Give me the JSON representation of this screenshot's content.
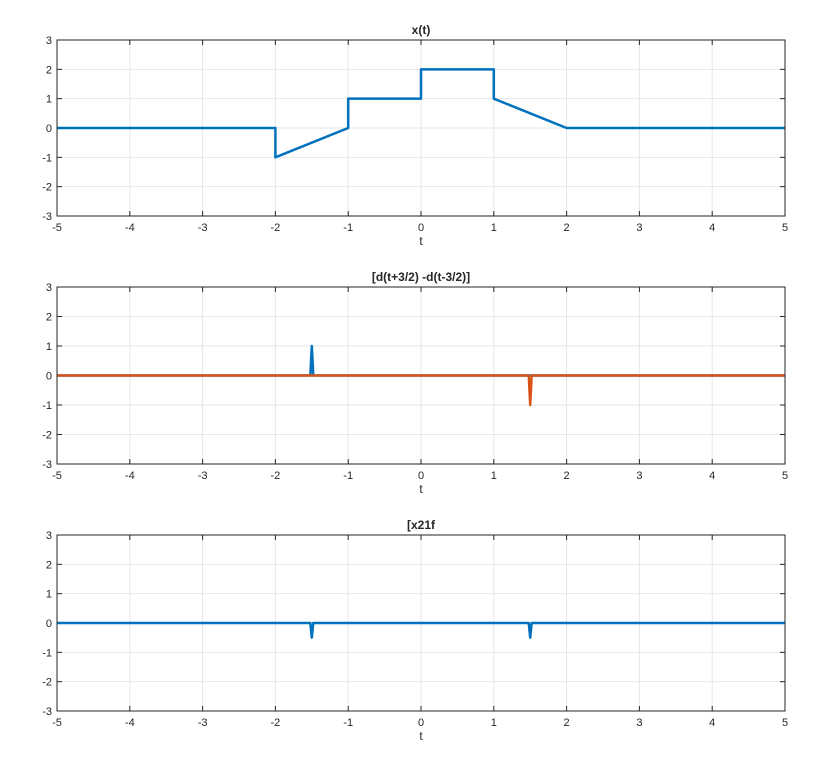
{
  "chart_data": [
    {
      "type": "line",
      "title": "x(t)",
      "xlabel": "t",
      "ylabel": "",
      "xlim": [
        -5,
        5
      ],
      "ylim": [
        -3,
        3
      ],
      "x_ticks": [
        "-5",
        "-4",
        "-3",
        "-2",
        "-1",
        "0",
        "1",
        "2",
        "3",
        "4",
        "5"
      ],
      "y_ticks": [
        "3",
        "2",
        "1",
        "0",
        "-1",
        "-2",
        "-3"
      ],
      "grid": true,
      "series": [
        {
          "color": "#0072BD",
          "x": [
            -5,
            -2,
            -2,
            -1,
            -1,
            0,
            0,
            1,
            1,
            2,
            5
          ],
          "y": [
            0,
            0,
            -1,
            0,
            1,
            1,
            2,
            2,
            1,
            0,
            0
          ]
        }
      ]
    },
    {
      "type": "line",
      "title": "[d(t+3/2) -d(t-3/2)]",
      "xlabel": "t",
      "ylabel": "",
      "xlim": [
        -5,
        5
      ],
      "ylim": [
        -3,
        3
      ],
      "x_ticks": [
        "-5",
        "-4",
        "-3",
        "-2",
        "-1",
        "0",
        "1",
        "2",
        "3",
        "4",
        "5"
      ],
      "y_ticks": [
        "3",
        "2",
        "1",
        "0",
        "-1",
        "-2",
        "-3"
      ],
      "grid": true,
      "series": [
        {
          "color": "#0072BD",
          "x": [
            -5,
            -1.52,
            -1.5,
            -1.48,
            5
          ],
          "y": [
            0,
            0,
            1,
            0,
            0
          ]
        },
        {
          "color": "#D95319",
          "x": [
            -5,
            1.48,
            1.5,
            1.52,
            5
          ],
          "y": [
            0,
            0,
            -1,
            0,
            0
          ]
        }
      ]
    },
    {
      "type": "line",
      "title": "[x21f",
      "xlabel": "t",
      "ylabel": "",
      "xlim": [
        -5,
        5
      ],
      "ylim": [
        -3,
        3
      ],
      "x_ticks": [
        "-5",
        "-4",
        "-3",
        "-2",
        "-1",
        "0",
        "1",
        "2",
        "3",
        "4",
        "5"
      ],
      "y_ticks": [
        "3",
        "2",
        "1",
        "0",
        "-1",
        "-2",
        "-3"
      ],
      "grid": true,
      "series": [
        {
          "color": "#0072BD",
          "x": [
            -5,
            -1.52,
            -1.5,
            -1.48,
            1.48,
            1.5,
            1.52,
            5
          ],
          "y": [
            0,
            0,
            -0.5,
            0,
            0,
            -0.5,
            0,
            0
          ]
        }
      ]
    }
  ]
}
